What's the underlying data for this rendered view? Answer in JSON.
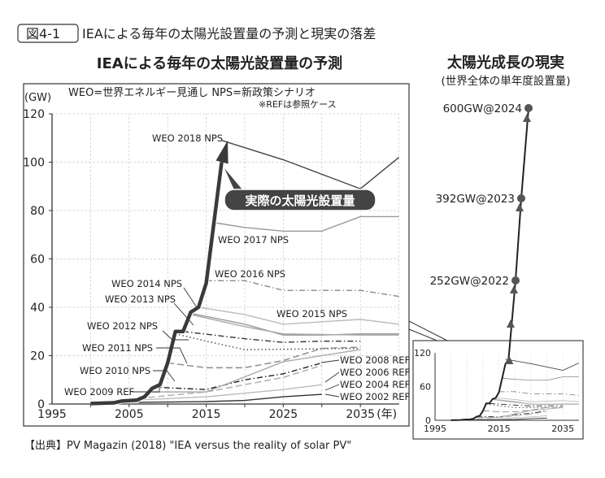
{
  "figure": {
    "number": "図4-1",
    "title": "IEAによる毎年の太陽光設置量の予測と現実の落差",
    "source": "【出典】PV Magazin (2018) \"IEA versus the reality of solar PV\""
  },
  "chart_data": [
    {
      "type": "line",
      "title": "IEAによる毎年の太陽光設置量の予測",
      "legend_note": "WEO=世界エネルギー見通し NPS=新政策シナリオ",
      "legend_note2": "※REFは参照ケース",
      "ylabel": "(GW)",
      "xlabel": "(年)",
      "xlim": [
        1995,
        2040
      ],
      "ylim": [
        0,
        120
      ],
      "xticks": [
        1995,
        2005,
        2015,
        2025,
        2035
      ],
      "yticks": [
        0,
        20,
        40,
        60,
        80,
        100,
        120
      ],
      "grid": true,
      "actual_label": "実際の太陽光設置量",
      "actual": {
        "color": "#3a3a3a",
        "points": [
          [
            2000,
            0.2
          ],
          [
            2003,
            0.5
          ],
          [
            2004,
            1.2
          ],
          [
            2006,
            1.6
          ],
          [
            2007,
            3
          ],
          [
            2008,
            6.5
          ],
          [
            2009,
            8
          ],
          [
            2010,
            17
          ],
          [
            2011,
            30
          ],
          [
            2012,
            30
          ],
          [
            2013,
            38
          ],
          [
            2014,
            40
          ],
          [
            2015,
            50
          ],
          [
            2016,
            75
          ],
          [
            2017,
            100
          ],
          [
            2018,
            109
          ]
        ]
      },
      "series": [
        {
          "name": "WEO 2018 NPS",
          "color": "#444444",
          "line_style": "solid",
          "points": [
            [
              2017,
              109
            ],
            [
              2025,
              101
            ],
            [
              2030,
              95
            ],
            [
              2035,
              89
            ],
            [
              2040,
              102
            ]
          ]
        },
        {
          "name": "WEO 2017 NPS",
          "color": "#999999",
          "line_style": "solid",
          "points": [
            [
              2016,
              75
            ],
            [
              2020,
              73
            ],
            [
              2025,
              71.5
            ],
            [
              2030,
              71.5
            ],
            [
              2035,
              77.5
            ],
            [
              2040,
              77.5
            ]
          ]
        },
        {
          "name": "WEO 2016 NPS",
          "color": "#888888",
          "line_style": "dash-dot",
          "points": [
            [
              2015,
              51
            ],
            [
              2020,
              51
            ],
            [
              2025,
              47
            ],
            [
              2030,
              47
            ],
            [
              2035,
              47
            ],
            [
              2040,
              44.5
            ]
          ]
        },
        {
          "name": "WEO 2015 NPS",
          "color": "#bbbbbb",
          "line_style": "solid",
          "points": [
            [
              2014,
              40
            ],
            [
              2020,
              37
            ],
            [
              2025,
              33
            ],
            [
              2030,
              34
            ],
            [
              2035,
              35
            ],
            [
              2040,
              33
            ]
          ]
        },
        {
          "name": "WEO 2014 NPS",
          "color": "#999999",
          "line_style": "solid",
          "points": [
            [
              2013,
              37.5
            ],
            [
              2020,
              33
            ],
            [
              2025,
              28.5
            ],
            [
              2030,
              28.5
            ],
            [
              2035,
              29
            ],
            [
              2040,
              29
            ]
          ]
        },
        {
          "name": "WEO 2013 NPS",
          "color": "#aaaaaa",
          "line_style": "solid",
          "points": [
            [
              2013,
              37
            ],
            [
              2020,
              32
            ],
            [
              2025,
              29
            ],
            [
              2035,
              28.5
            ],
            [
              2040,
              28.5
            ]
          ]
        },
        {
          "name": "WEO 2012 NPS",
          "color": "#333333",
          "line_style": "dash-dot",
          "points": [
            [
              2012,
              30
            ],
            [
              2020,
              27
            ],
            [
              2025,
              25.5
            ],
            [
              2030,
              26
            ],
            [
              2035,
              26
            ]
          ]
        },
        {
          "name": "WEO 2011 NPS",
          "color": "#444444",
          "line_style": "dotted",
          "points": [
            [
              2011,
              29
            ],
            [
              2015,
              26
            ],
            [
              2020,
              22.5
            ],
            [
              2035,
              23
            ]
          ]
        },
        {
          "name": "WEO 2010 NPS",
          "color": "#888888",
          "line_style": "dashed",
          "points": [
            [
              2010,
              17
            ],
            [
              2015,
              15
            ],
            [
              2020,
              15
            ],
            [
              2025,
              18
            ],
            [
              2030,
              23
            ],
            [
              2035,
              23.5
            ]
          ]
        },
        {
          "name": "WEO 2009 REF",
          "color": "#222222",
          "line_style": "dash-dot",
          "points": [
            [
              2008,
              7
            ],
            [
              2015,
              6
            ],
            [
              2020,
              10
            ],
            [
              2025,
              12.5
            ],
            [
              2030,
              17
            ]
          ]
        },
        {
          "name": "WEO 2008 REF",
          "color": "#aaaaaa",
          "line_style": "solid",
          "points": [
            [
              2008,
              5
            ],
            [
              2015,
              5
            ],
            [
              2025,
              17.5
            ],
            [
              2035,
              22.5
            ]
          ]
        },
        {
          "name": "WEO 2006 REF",
          "color": "#aaaaaa",
          "line_style": "dashed",
          "points": [
            [
              2005,
              2
            ],
            [
              2015,
              5
            ],
            [
              2025,
              11
            ],
            [
              2030,
              16
            ]
          ]
        },
        {
          "name": "WEO 2004 REF",
          "color": "#bbbbbb",
          "line_style": "solid",
          "points": [
            [
              2005,
              1.5
            ],
            [
              2015,
              3
            ],
            [
              2025,
              6
            ],
            [
              2030,
              8
            ]
          ]
        },
        {
          "name": "WEO 2002 REF",
          "color": "#333333",
          "line_style": "solid",
          "points": [
            [
              2000,
              0.5
            ],
            [
              2015,
              1
            ],
            [
              2020,
              1.5
            ],
            [
              2025,
              3
            ],
            [
              2030,
              4
            ]
          ]
        }
      ]
    },
    {
      "type": "line",
      "title": "太陽光成長の現実",
      "subtitle": "(世界全体の単年度設置量)",
      "points": [
        {
          "year": 2022,
          "value": 252,
          "label": "252GW@2022"
        },
        {
          "year": 2023,
          "value": 392,
          "label": "392GW@2023"
        },
        {
          "year": 2024,
          "value": 600,
          "label": "600GW@2024"
        }
      ],
      "inset": {
        "xticks": [
          1995,
          2015,
          2035
        ],
        "yticks": [
          0,
          60,
          120
        ],
        "xlim": [
          1995,
          2040
        ],
        "ylim": [
          0,
          120
        ]
      }
    }
  ]
}
